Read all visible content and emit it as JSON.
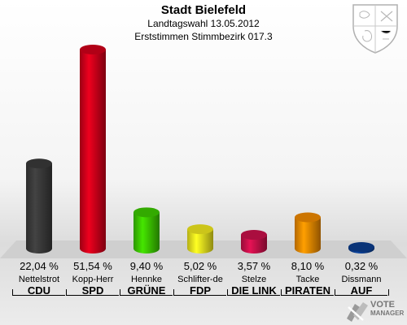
{
  "header": {
    "title": "Stadt Bielefeld",
    "subtitle1": "Landtagswahl 13.05.2012",
    "subtitle2": "Erststimmen Stimmbezirk 017.3"
  },
  "logo": {
    "line1": "VOTE",
    "line2": "MANAGER"
  },
  "colors": {
    "CDU": "#3a3a3a",
    "SPD": "#d0001a",
    "GRUENE": "#3cc800",
    "FDP": "#f0e81e",
    "LINKE": "#c8104a",
    "PIRATEN": "#f08a00",
    "AUF": "#0a3c8c"
  },
  "chart_data": {
    "type": "bar",
    "title": "Stadt Bielefeld",
    "ylim": [
      0,
      55
    ],
    "categories": [
      "CDU",
      "SPD",
      "GRÜNE",
      "FDP",
      "DIE LINKE",
      "PIRATEN",
      "AUF"
    ],
    "candidates": [
      "Nettelstrot",
      "Kopp-Herr",
      "Hennke",
      "Schlifter-de",
      "Stelze",
      "Tacke",
      "Dissmann"
    ],
    "values": [
      22.04,
      51.54,
      9.4,
      5.02,
      3.57,
      8.1,
      0.32
    ],
    "value_labels": [
      "22,04 %",
      "51,54 %",
      "9,40 %",
      "5,02 %",
      "3,57 %",
      "8,10 %",
      "0,32 %"
    ],
    "party_labels": [
      "CDU",
      "SPD",
      "GRÜNE",
      "FDP",
      "DIE LINK",
      "PIRATEN",
      "AUF"
    ],
    "bar_colors": [
      "#3a3a3a",
      "#d0001a",
      "#3cc800",
      "#f0e81e",
      "#c8104a",
      "#f08a00",
      "#0a3c8c"
    ]
  }
}
